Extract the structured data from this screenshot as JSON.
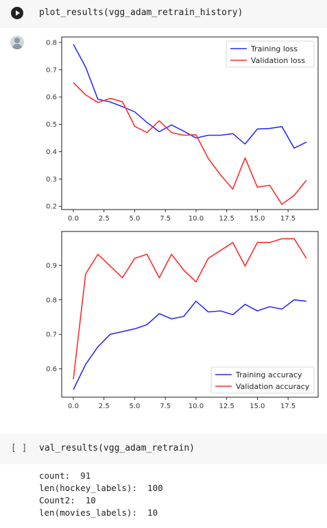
{
  "cell1": {
    "code": "plot_results(vgg_adam_retrain_history)"
  },
  "cell2": {
    "bracket": "[ ]",
    "code": "val_results(vgg_adam_retrain)"
  },
  "output_lines": [
    "count:  91",
    "len(hockey_labels):  100",
    "Count2:  10",
    "len(movies_labels):  10"
  ],
  "chart_data": [
    {
      "type": "line",
      "title": "",
      "xlabel": "",
      "ylabel": "",
      "x": [
        0,
        1,
        2,
        3,
        4,
        5,
        6,
        7,
        8,
        9,
        10,
        11,
        12,
        13,
        14,
        15,
        16,
        17,
        18,
        19
      ],
      "xlim": [
        -0.95,
        19.95
      ],
      "ylim": [
        0.188,
        0.82
      ],
      "xticks": [
        0.0,
        2.5,
        5.0,
        7.5,
        10.0,
        12.5,
        15.0,
        17.5
      ],
      "xtick_labels": [
        "0.0",
        "2.5",
        "5.0",
        "7.5",
        "10.0",
        "12.5",
        "15.0",
        "17.5"
      ],
      "yticks": [
        0.2,
        0.3,
        0.4,
        0.5,
        0.6,
        0.7,
        0.8
      ],
      "ytick_labels": [
        "0.2",
        "0.3",
        "0.4",
        "0.5",
        "0.6",
        "0.7",
        "0.8"
      ],
      "legend_position": "top-right",
      "series": [
        {
          "name": "Training loss",
          "color": "#2a2aff",
          "values": [
            0.793,
            0.71,
            0.592,
            0.582,
            0.565,
            0.546,
            0.507,
            0.473,
            0.498,
            0.475,
            0.45,
            0.46,
            0.46,
            0.466,
            0.428,
            0.483,
            0.485,
            0.492,
            0.413,
            0.435
          ]
        },
        {
          "name": "Validation loss",
          "color": "#ff2a2a",
          "values": [
            0.653,
            0.608,
            0.58,
            0.595,
            0.583,
            0.493,
            0.47,
            0.513,
            0.47,
            0.46,
            0.462,
            0.375,
            0.315,
            0.263,
            0.377,
            0.27,
            0.277,
            0.207,
            0.24,
            0.295
          ]
        }
      ]
    },
    {
      "type": "line",
      "title": "",
      "xlabel": "",
      "ylabel": "",
      "x": [
        0,
        1,
        2,
        3,
        4,
        5,
        6,
        7,
        8,
        9,
        10,
        11,
        12,
        13,
        14,
        15,
        16,
        17,
        18,
        19
      ],
      "xlim": [
        -0.95,
        19.95
      ],
      "ylim": [
        0.518,
        0.998
      ],
      "xticks": [
        0.0,
        2.5,
        5.0,
        7.5,
        10.0,
        12.5,
        15.0,
        17.5
      ],
      "xtick_labels": [
        "0.0",
        "2.5",
        "5.0",
        "7.5",
        "10.0",
        "12.5",
        "15.0",
        "17.5"
      ],
      "yticks": [
        0.6,
        0.7,
        0.8,
        0.9
      ],
      "ytick_labels": [
        "0.6",
        "0.7",
        "0.8",
        "0.9"
      ],
      "legend_position": "bottom-right",
      "series": [
        {
          "name": "Training accuracy",
          "color": "#2a2aff",
          "values": [
            0.54,
            0.613,
            0.664,
            0.7,
            0.708,
            0.716,
            0.728,
            0.76,
            0.745,
            0.752,
            0.796,
            0.765,
            0.768,
            0.757,
            0.787,
            0.768,
            0.78,
            0.773,
            0.8,
            0.796
          ]
        },
        {
          "name": "Validation accuracy",
          "color": "#ff2a2a",
          "values": [
            0.57,
            0.875,
            0.932,
            0.898,
            0.864,
            0.92,
            0.932,
            0.864,
            0.932,
            0.886,
            0.852,
            0.92,
            0.943,
            0.966,
            0.898,
            0.966,
            0.966,
            0.977,
            0.977,
            0.92
          ]
        }
      ]
    }
  ]
}
